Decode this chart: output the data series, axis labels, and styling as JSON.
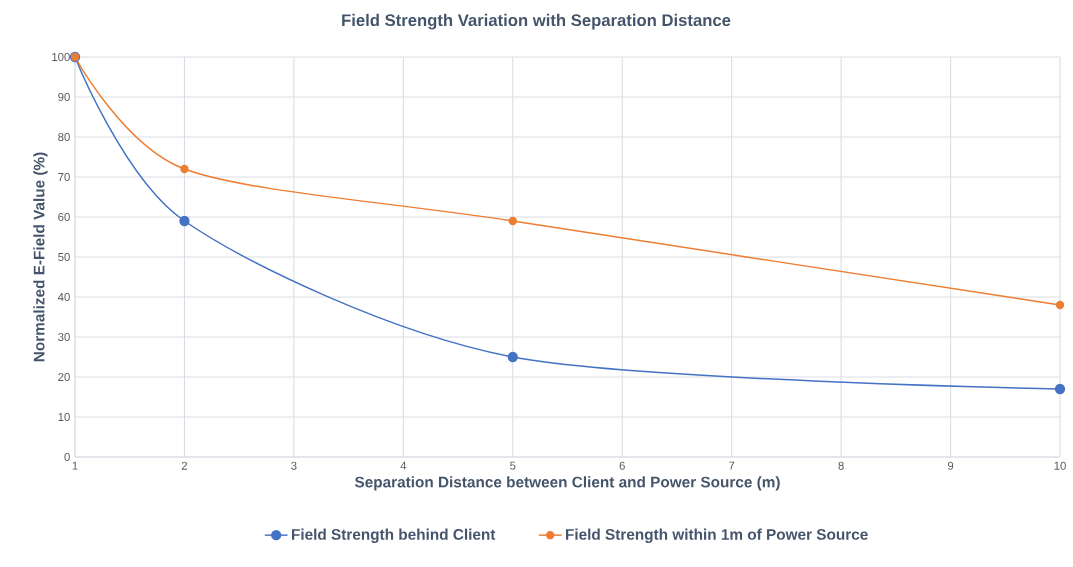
{
  "chart_data": {
    "type": "line",
    "title": "Field Strength Variation with Separation Distance",
    "xlabel": "Separation Distance between Client and Power Source (m)",
    "ylabel": "Normalized E-Field Value (%)",
    "x": [
      1,
      2,
      5,
      10
    ],
    "series": [
      {
        "name": "Field Strength behind Client",
        "color": "#4472c4",
        "values": [
          100,
          59,
          25,
          17
        ]
      },
      {
        "name": "Field Strength within 1m of Power Source",
        "color": "#ed7d31",
        "values": [
          100,
          72,
          59,
          38
        ]
      }
    ],
    "xlim": [
      1,
      10
    ],
    "ylim": [
      0,
      100
    ],
    "xticks": [
      1,
      2,
      3,
      4,
      5,
      6,
      7,
      8,
      9,
      10
    ],
    "yticks": [
      0,
      10,
      20,
      30,
      40,
      50,
      60,
      70,
      80,
      90,
      100
    ],
    "grid": true,
    "legend": "bottom",
    "marker": "circle"
  }
}
